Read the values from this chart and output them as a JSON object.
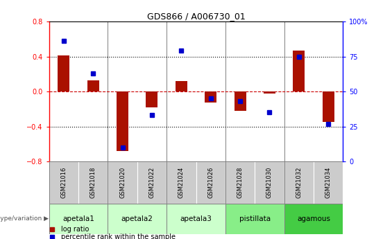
{
  "title": "GDS866 / A006730_01",
  "samples": [
    "GSM21016",
    "GSM21018",
    "GSM21020",
    "GSM21022",
    "GSM21024",
    "GSM21026",
    "GSM21028",
    "GSM21030",
    "GSM21032",
    "GSM21034"
  ],
  "log_ratio": [
    0.41,
    0.13,
    -0.68,
    -0.18,
    0.12,
    -0.13,
    -0.22,
    -0.02,
    0.47,
    -0.35
  ],
  "percentile_rank": [
    86,
    63,
    10,
    33,
    79,
    45,
    43,
    35,
    75,
    27
  ],
  "ylim_left": [
    -0.8,
    0.8
  ],
  "ylim_right": [
    0,
    100
  ],
  "yticks_left": [
    -0.8,
    -0.4,
    0.0,
    0.4,
    0.8
  ],
  "yticks_right": [
    0,
    25,
    50,
    75,
    100
  ],
  "bar_color": "#aa1100",
  "dot_color": "#0000cc",
  "zero_line_color": "#cc0000",
  "genotype_groups": [
    {
      "label": "apetala1",
      "indices": [
        0,
        1
      ],
      "color": "#ccffcc"
    },
    {
      "label": "apetala2",
      "indices": [
        2,
        3
      ],
      "color": "#ccffcc"
    },
    {
      "label": "apetala3",
      "indices": [
        4,
        5
      ],
      "color": "#ccffcc"
    },
    {
      "label": "pistillata",
      "indices": [
        6,
        7
      ],
      "color": "#88ee88"
    },
    {
      "label": "agamous",
      "indices": [
        8,
        9
      ],
      "color": "#44cc44"
    }
  ],
  "legend_bar_label": "log ratio",
  "legend_dot_label": "percentile rank within the sample",
  "genotype_label": "genotype/variation",
  "sample_box_color": "#cccccc",
  "bar_width": 0.4
}
